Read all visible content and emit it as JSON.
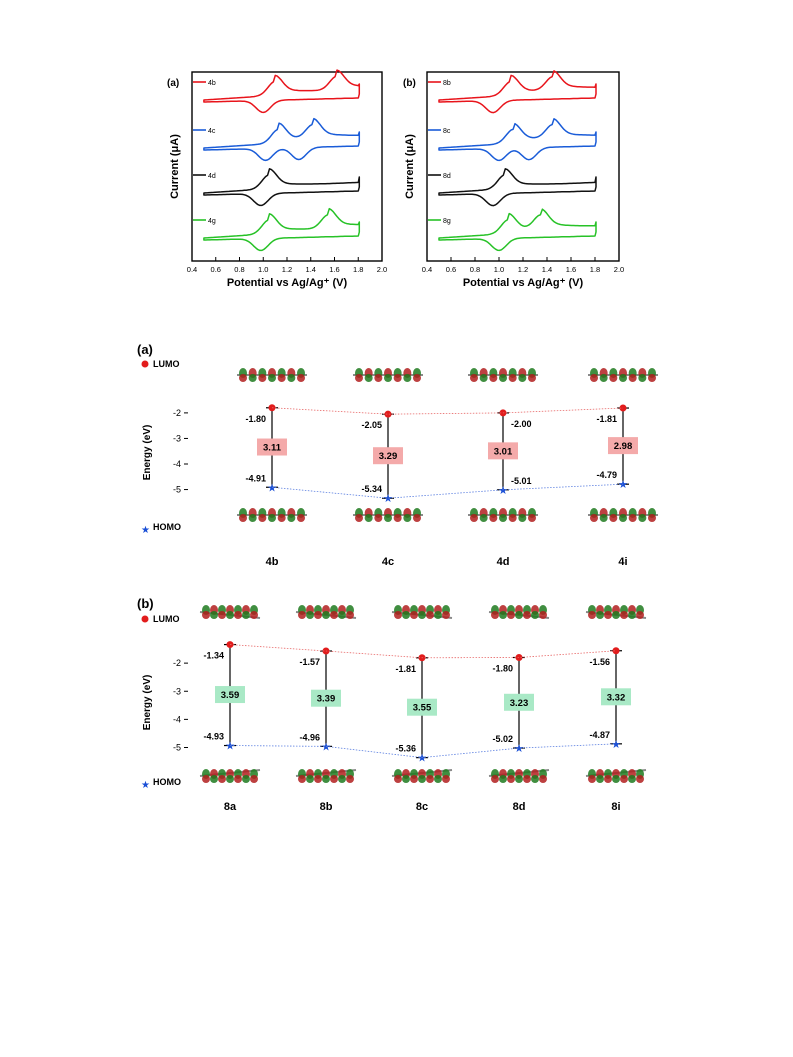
{
  "cv_panels": [
    {
      "label": "(a)",
      "ylabel": "Current (μA)",
      "xlabel": "Potential vs Ag/Ag⁺ (V)",
      "xticks": [
        "0.4",
        "0.6",
        "0.8",
        "1.0",
        "1.2",
        "1.4",
        "1.6",
        "1.8",
        "2.0"
      ],
      "xlim": [
        0.4,
        2.0
      ],
      "traces": [
        {
          "name": "4b",
          "color": "#e8141b",
          "peaks": [
            1.1,
            1.62
          ],
          "returns": [
            1.0
          ]
        },
        {
          "name": "4c",
          "color": "#1a5cd8",
          "peaks": [
            1.13,
            1.42
          ],
          "returns": [
            1.02,
            1.3
          ]
        },
        {
          "name": "4d",
          "color": "#111111",
          "peaks": [
            1.05
          ],
          "returns": [
            0.98
          ]
        },
        {
          "name": "4g",
          "color": "#27c227",
          "peaks": [
            1.05,
            1.55
          ],
          "returns": [
            0.98
          ]
        }
      ]
    },
    {
      "label": "(b)",
      "ylabel": "Current (μA)",
      "xlabel": "Potential vs Ag/Ag⁺ (V)",
      "xticks": [
        "0.4",
        "0.6",
        "0.8",
        "1.0",
        "1.2",
        "1.4",
        "1.6",
        "1.8",
        "2.0"
      ],
      "xlim": [
        0.4,
        2.0
      ],
      "traces": [
        {
          "name": "8b",
          "color": "#e8141b",
          "peaks": [
            1.1,
            1.45
          ],
          "returns": [
            0.95
          ]
        },
        {
          "name": "8c",
          "color": "#1a5cd8",
          "peaks": [
            1.12,
            1.45
          ],
          "returns": [
            1.0,
            1.25
          ]
        },
        {
          "name": "8d",
          "color": "#111111",
          "peaks": [
            1.05
          ],
          "returns": [
            0.95
          ]
        },
        {
          "name": "8g",
          "color": "#27c227",
          "peaks": [
            1.08,
            1.35
          ],
          "returns": [
            1.0
          ]
        }
      ]
    }
  ],
  "chart_data": [
    {
      "type": "scatter",
      "label": "(a)",
      "ylabel": "Energy (eV)",
      "ylim": [
        -5.8,
        -1.3
      ],
      "yticks": [
        "-2",
        "-3",
        "-4",
        "-5"
      ],
      "lumo_label": "LUMO",
      "homo_label": "HOMO",
      "compounds": [
        "4b",
        "4c",
        "4d",
        "4i"
      ],
      "lumo": [
        -1.8,
        -2.05,
        -2.0,
        -1.81
      ],
      "homo": [
        -4.91,
        -5.34,
        -5.01,
        -4.79
      ],
      "gap": [
        3.11,
        3.29,
        3.01,
        2.98
      ],
      "lumo_text": [
        "-1.80",
        "-2.05",
        "-2.00",
        "-1.81"
      ],
      "homo_text": [
        "-4.91",
        "-5.34",
        "-5.01",
        "-4.79"
      ],
      "gap_text": [
        "3.11",
        "3.29",
        "3.01",
        "2.98"
      ],
      "box_color": "#f4aaaa"
    },
    {
      "type": "scatter",
      "label": "(b)",
      "ylabel": "Energy (eV)",
      "ylim": [
        -5.8,
        -1.0
      ],
      "yticks": [
        "-2",
        "-3",
        "-4",
        "-5"
      ],
      "lumo_label": "LUMO",
      "homo_label": "HOMO",
      "compounds": [
        "8a",
        "8b",
        "8c",
        "8d",
        "8i"
      ],
      "lumo": [
        -1.34,
        -1.57,
        -1.81,
        -1.8,
        -1.56
      ],
      "homo": [
        -4.93,
        -4.96,
        -5.36,
        -5.02,
        -4.87
      ],
      "gap": [
        3.59,
        3.39,
        3.55,
        3.23,
        3.32
      ],
      "lumo_text": [
        "-1.34",
        "-1.57",
        "-1.81",
        "-1.80",
        "-1.56"
      ],
      "homo_text": [
        "-4.93",
        "-4.96",
        "-5.36",
        "-5.02",
        "-4.87"
      ],
      "gap_text": [
        "3.59",
        "3.39",
        "3.55",
        "3.23",
        "3.32"
      ],
      "box_color": "#a9e9c6"
    }
  ]
}
